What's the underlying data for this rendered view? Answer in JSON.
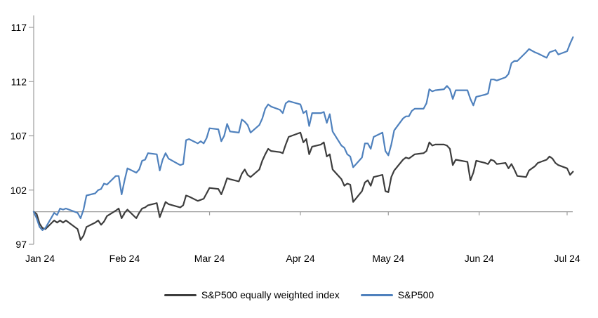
{
  "chart_data": {
    "type": "line",
    "title": "",
    "legend_position": "bottom",
    "grid": false,
    "axis_color": "#9c9c9c",
    "x_axis": {
      "tick_labels": [
        "Jan 24",
        "Feb 24",
        "Mar 24",
        "Apr 24",
        "May 24",
        "Jun 24",
        "Jul 24"
      ],
      "tick_days": [
        0,
        31,
        60,
        91,
        121,
        152,
        182
      ],
      "max_day": 184
    },
    "y_axis": {
      "min": 97,
      "max": 117,
      "ticks": [
        97,
        102,
        107,
        112,
        117
      ],
      "baseline_value": 100
    },
    "x_days": [
      0,
      1,
      2,
      3,
      4,
      7,
      8,
      9,
      10,
      11,
      15,
      16,
      17,
      18,
      21,
      22,
      23,
      24,
      25,
      28,
      29,
      30,
      31,
      32,
      35,
      36,
      37,
      38,
      39,
      42,
      43,
      44,
      45,
      46,
      50,
      51,
      52,
      53,
      56,
      57,
      58,
      59,
      60,
      63,
      64,
      65,
      66,
      67,
      70,
      71,
      72,
      73,
      74,
      77,
      78,
      79,
      80,
      81,
      84,
      85,
      86,
      87,
      91,
      92,
      93,
      94,
      95,
      98,
      99,
      100,
      101,
      102,
      105,
      106,
      107,
      108,
      109,
      112,
      113,
      114,
      115,
      116,
      119,
      120,
      121,
      122,
      123,
      126,
      127,
      128,
      129,
      130,
      133,
      134,
      135,
      136,
      137,
      140,
      141,
      142,
      143,
      144,
      148,
      149,
      150,
      151,
      154,
      155,
      156,
      157,
      158,
      161,
      162,
      163,
      164,
      165,
      168,
      169,
      171,
      172,
      175,
      176,
      177,
      178,
      179,
      182,
      183,
      184
    ],
    "series": [
      {
        "name": "S&P500 equally weighted index",
        "color": "#3d3d3d",
        "values": [
          100,
          99.8,
          98.9,
          98.5,
          98.4,
          99.2,
          99,
          99.2,
          99,
          99.2,
          98.4,
          97.4,
          97.8,
          98.6,
          99,
          99.2,
          98.8,
          99.1,
          99.6,
          100.1,
          100.3,
          99.4,
          99.9,
          100.2,
          99.4,
          99.9,
          100.3,
          100.4,
          100.6,
          100.8,
          99.5,
          100.2,
          100.9,
          100.7,
          100.4,
          100.6,
          101.5,
          101.4,
          101,
          101.1,
          101.2,
          101.7,
          102.2,
          102.1,
          101.6,
          102.3,
          103.1,
          103,
          102.8,
          103.5,
          103.9,
          103.4,
          103.2,
          103.9,
          104.7,
          105.3,
          105.8,
          105.6,
          105.5,
          105.4,
          106.2,
          106.9,
          107.3,
          106.4,
          106.7,
          105.3,
          106,
          106.2,
          106.4,
          105.1,
          105.3,
          103.9,
          103,
          102.4,
          102.6,
          102.5,
          100.9,
          101.9,
          102.7,
          102.9,
          102.4,
          103.2,
          103.4,
          101.9,
          101.8,
          103.2,
          103.8,
          104.8,
          105,
          104.9,
          105.1,
          105.3,
          105.4,
          105.6,
          106.4,
          106.1,
          106.2,
          106.2,
          106.1,
          105.8,
          104.3,
          104.8,
          104.6,
          102.9,
          103.6,
          104.7,
          104.5,
          104.4,
          104.8,
          104.7,
          104.4,
          104.5,
          104,
          104.4,
          103.9,
          103.3,
          103.2,
          103.8,
          104.2,
          104.5,
          104.8,
          105.1,
          104.9,
          104.5,
          104.3,
          104,
          103.4,
          103.7
        ]
      },
      {
        "name": "S&P500",
        "color": "#4f81bd",
        "values": [
          100,
          99.4,
          98.6,
          98.3,
          98.5,
          99.9,
          99.7,
          100.3,
          100.2,
          100.3,
          99.9,
          99.4,
          100.2,
          101.5,
          101.7,
          102,
          102.1,
          102.6,
          102.5,
          103.3,
          103.3,
          101.6,
          102.9,
          104,
          103.6,
          103.9,
          104.7,
          104.8,
          105.4,
          105.3,
          103.8,
          104.8,
          105.4,
          104.9,
          104.3,
          104.4,
          106.6,
          106.7,
          106.3,
          106.5,
          106.3,
          106.8,
          107.7,
          107.6,
          106.5,
          107,
          108.1,
          107.4,
          107.3,
          108.5,
          108.3,
          108,
          107.3,
          108,
          108.6,
          109.5,
          109.9,
          109.7,
          109.4,
          109.1,
          110,
          110.2,
          109.9,
          109.1,
          109.3,
          107.9,
          109.1,
          109.1,
          109.2,
          108.2,
          109,
          107.4,
          106.1,
          105.9,
          105.3,
          105.1,
          104.1,
          105,
          106.3,
          106.3,
          105.8,
          106.9,
          107.3,
          105.6,
          105.2,
          106.2,
          107.5,
          108.6,
          108.8,
          108.8,
          109.3,
          109.5,
          109.5,
          110,
          111.3,
          111.1,
          111.2,
          111.3,
          111.6,
          111.3,
          110.4,
          111.2,
          111.2,
          110.4,
          109.8,
          110.6,
          110.8,
          110.9,
          112.2,
          112.2,
          112.1,
          112.4,
          112.7,
          113.7,
          113.9,
          113.9,
          114.7,
          115,
          114.7,
          114.6,
          114.2,
          114.7,
          114.8,
          114.9,
          114.5,
          114.8,
          115.5,
          116.1
        ]
      }
    ]
  }
}
